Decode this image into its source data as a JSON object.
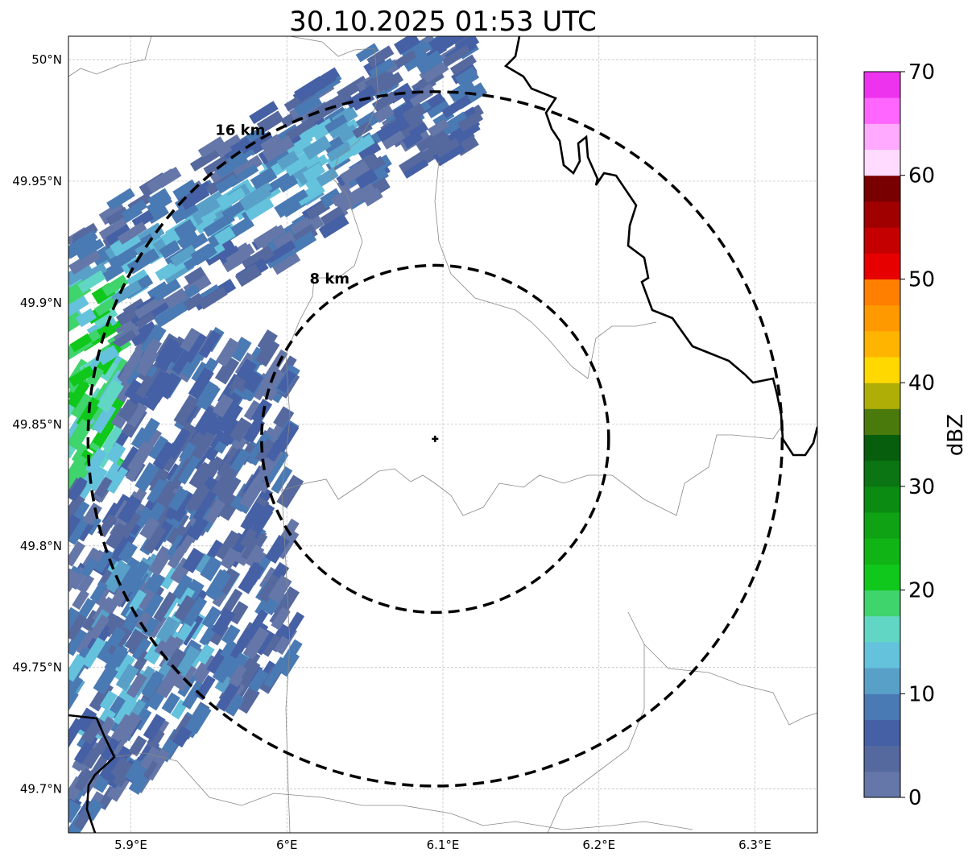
{
  "chart_data": {
    "type": "heatmap",
    "title": "30.10.2025 01:53 UTC",
    "xlim": [
      5.86,
      6.34
    ],
    "ylim": [
      49.682,
      50.0096
    ],
    "x_ticks": [
      {
        "value": 5.9,
        "label": "5.9°E"
      },
      {
        "value": 6.0,
        "label": "6°E"
      },
      {
        "value": 6.1,
        "label": "6.1°E"
      },
      {
        "value": 6.2,
        "label": "6.2°E"
      },
      {
        "value": 6.3,
        "label": "6.3°E"
      }
    ],
    "y_ticks": [
      {
        "value": 50.0,
        "label": "50°N"
      },
      {
        "value": 49.95,
        "label": "49.95°N"
      },
      {
        "value": 49.9,
        "label": "49.9°N"
      },
      {
        "value": 49.85,
        "label": "49.85°N"
      },
      {
        "value": 49.8,
        "label": "49.8°N"
      },
      {
        "value": 49.75,
        "label": "49.75°N"
      },
      {
        "value": 49.7,
        "label": "49.7°N"
      }
    ],
    "grid": true,
    "radar_site": {
      "lon": 6.095,
      "lat": 49.844
    },
    "range_rings": [
      {
        "radius_km": 8,
        "label": "8 km"
      },
      {
        "radius_km": 16,
        "label": "16 km"
      }
    ],
    "colorbar": {
      "label": "dBZ",
      "range": [
        0,
        70
      ],
      "step": 2.5,
      "ticks": [
        "0",
        "10",
        "20",
        "30",
        "40",
        "50",
        "60",
        "70"
      ],
      "colors": [
        "#6577a8",
        "#55699f",
        "#4560a5",
        "#4a7ab3",
        "#59a0c8",
        "#64c2dc",
        "#62d6c4",
        "#3fd46c",
        "#10c81b",
        "#10b515",
        "#0ea214",
        "#0b8b12",
        "#0a7512",
        "#075f0d",
        "#4a7a0c",
        "#afae07",
        "#ffd800",
        "#ffb400",
        "#ff9900",
        "#ff7f00",
        "#e60000",
        "#c40000",
        "#a00000",
        "#780000",
        "#ffdcff",
        "#ffaaff",
        "#ff66ff",
        "#ee33ee"
      ]
    },
    "echo_summary": {
      "min_dbz": 0,
      "max_dbz": 22.5,
      "location": "west and northwest of radar"
    }
  }
}
